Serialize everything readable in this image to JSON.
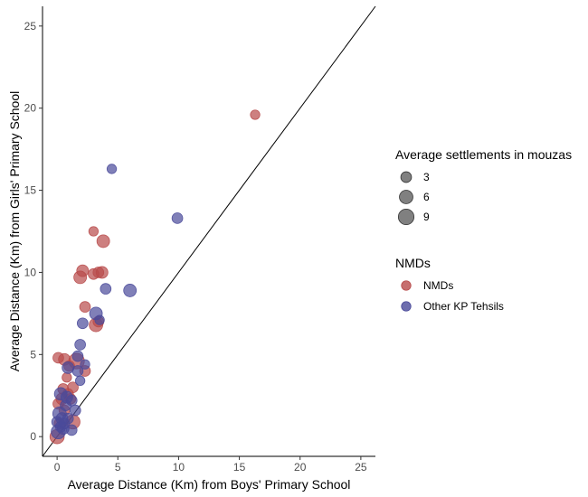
{
  "chart_data": {
    "type": "scatter",
    "xlabel": "Average Distance (Km) from Boys' Primary School",
    "ylabel": "Average Distance (Km) from Girls' Primary School",
    "xlim": [
      -1.2,
      26.2
    ],
    "ylim": [
      -1.2,
      26.2
    ],
    "x_ticks": [
      0,
      5,
      10,
      15,
      20,
      25
    ],
    "y_ticks": [
      0,
      5,
      10,
      15,
      20,
      25
    ],
    "x_tick_labels": [
      "0",
      "5",
      "10",
      "15",
      "20",
      "25"
    ],
    "y_tick_labels": [
      "0",
      "5",
      "10",
      "15",
      "20",
      "25"
    ],
    "reference_line": "y = x",
    "grid": false,
    "colors": {
      "NMDs": "#b84a4a",
      "Other KP Tehsils": "#4a4a9a",
      "reference_line": "#000000",
      "size_legend": "#555555"
    },
    "legend": {
      "position": "right",
      "size_title": "Average settlements in mouzas",
      "size_items": [
        {
          "value": 3,
          "label": "3"
        },
        {
          "value": 6,
          "label": "6"
        },
        {
          "value": 9,
          "label": "9"
        }
      ],
      "color_title": "NMDs",
      "color_items": [
        {
          "label": "NMDs",
          "color": "#b84a4a"
        },
        {
          "label": "Other KP Tehsils",
          "color": "#4a4a9a"
        }
      ]
    },
    "series": [
      {
        "name": "NMDs",
        "points": [
          {
            "x": 16.3,
            "y": 19.6,
            "s": 2
          },
          {
            "x": 3.0,
            "y": 12.5,
            "s": 2
          },
          {
            "x": 3.8,
            "y": 11.9,
            "s": 5
          },
          {
            "x": 2.1,
            "y": 10.1,
            "s": 4
          },
          {
            "x": 1.9,
            "y": 9.7,
            "s": 5
          },
          {
            "x": 3.4,
            "y": 10.0,
            "s": 3
          },
          {
            "x": 3.0,
            "y": 9.9,
            "s": 3
          },
          {
            "x": 3.7,
            "y": 10.0,
            "s": 4
          },
          {
            "x": 2.3,
            "y": 7.9,
            "s": 3
          },
          {
            "x": 3.2,
            "y": 6.8,
            "s": 6
          },
          {
            "x": 3.4,
            "y": 7.0,
            "s": 3
          },
          {
            "x": 0.1,
            "y": 4.8,
            "s": 3
          },
          {
            "x": 0.6,
            "y": 4.7,
            "s": 4
          },
          {
            "x": 1.6,
            "y": 4.6,
            "s": 9
          },
          {
            "x": 1.0,
            "y": 4.3,
            "s": 3
          },
          {
            "x": 2.3,
            "y": 4.0,
            "s": 3
          },
          {
            "x": 0.8,
            "y": 3.6,
            "s": 2
          },
          {
            "x": 1.3,
            "y": 3.0,
            "s": 3
          },
          {
            "x": 0.4,
            "y": 2.3,
            "s": 4
          },
          {
            "x": 0.1,
            "y": 2.0,
            "s": 3
          },
          {
            "x": 0.9,
            "y": 2.6,
            "s": 3
          },
          {
            "x": 1.3,
            "y": 0.9,
            "s": 7
          },
          {
            "x": 0.6,
            "y": 1.6,
            "s": 3
          },
          {
            "x": 0.0,
            "y": 0.0,
            "s": 7
          },
          {
            "x": 0.2,
            "y": 0.8,
            "s": 3
          },
          {
            "x": 0.5,
            "y": 2.9,
            "s": 3
          },
          {
            "x": 1.1,
            "y": 2.3,
            "s": 3
          }
        ]
      },
      {
        "name": "Other KP Tehsils",
        "points": [
          {
            "x": 4.5,
            "y": 16.3,
            "s": 2
          },
          {
            "x": 9.9,
            "y": 13.3,
            "s": 3
          },
          {
            "x": 6.0,
            "y": 8.9,
            "s": 5
          },
          {
            "x": 4.0,
            "y": 9.0,
            "s": 3
          },
          {
            "x": 3.2,
            "y": 7.5,
            "s": 5
          },
          {
            "x": 3.5,
            "y": 7.1,
            "s": 2
          },
          {
            "x": 2.1,
            "y": 6.9,
            "s": 3
          },
          {
            "x": 1.9,
            "y": 5.6,
            "s": 3
          },
          {
            "x": 1.7,
            "y": 4.9,
            "s": 3
          },
          {
            "x": 0.9,
            "y": 4.2,
            "s": 4
          },
          {
            "x": 1.7,
            "y": 4.0,
            "s": 3
          },
          {
            "x": 1.9,
            "y": 3.4,
            "s": 2
          },
          {
            "x": 2.3,
            "y": 4.4,
            "s": 2
          },
          {
            "x": 0.3,
            "y": 2.6,
            "s": 5
          },
          {
            "x": 0.8,
            "y": 2.4,
            "s": 4
          },
          {
            "x": 1.2,
            "y": 2.2,
            "s": 3
          },
          {
            "x": 1.5,
            "y": 1.6,
            "s": 3
          },
          {
            "x": 0.2,
            "y": 1.4,
            "s": 6
          },
          {
            "x": 0.7,
            "y": 1.9,
            "s": 3
          },
          {
            "x": 0.4,
            "y": 1.1,
            "s": 4
          },
          {
            "x": 0.9,
            "y": 1.1,
            "s": 3
          },
          {
            "x": 1.2,
            "y": 0.4,
            "s": 3
          },
          {
            "x": 0.1,
            "y": 0.3,
            "s": 7
          },
          {
            "x": 0.3,
            "y": 0.6,
            "s": 3
          },
          {
            "x": 0.5,
            "y": 0.5,
            "s": 4
          },
          {
            "x": 0.0,
            "y": 0.9,
            "s": 3
          },
          {
            "x": 0.6,
            "y": 0.8,
            "s": 3
          }
        ]
      }
    ]
  }
}
